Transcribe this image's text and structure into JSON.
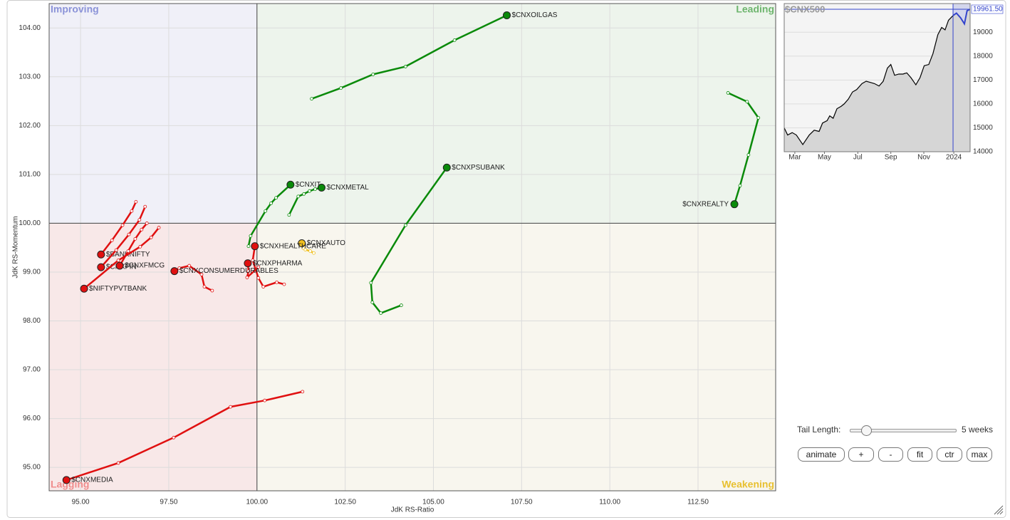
{
  "chart_data": [
    {
      "type": "rrg",
      "x_label": "JdK RS-Ratio",
      "y_label": "JdK RS-Momentum",
      "xlim": [
        94.11,
        114.7
      ],
      "ylim": [
        94.52,
        104.5
      ],
      "xticks": [
        {
          "value": 95,
          "label": "95.00"
        },
        {
          "value": 97.5,
          "label": "97.50"
        },
        {
          "value": 100,
          "label": "100.00"
        },
        {
          "value": 102.5,
          "label": "102.50"
        },
        {
          "value": 105,
          "label": "105.00"
        },
        {
          "value": 107.5,
          "label": "107.50"
        },
        {
          "value": 110,
          "label": "110.00"
        },
        {
          "value": 112.5,
          "label": "112.50"
        }
      ],
      "yticks": [
        {
          "value": 95,
          "label": "95.00"
        },
        {
          "value": 96,
          "label": "96.00"
        },
        {
          "value": 97,
          "label": "97.00"
        },
        {
          "value": 98,
          "label": "98.00"
        },
        {
          "value": 99,
          "label": "99.00"
        },
        {
          "value": 100,
          "label": "100.00"
        },
        {
          "value": 101,
          "label": "101.00"
        },
        {
          "value": 102,
          "label": "102.00"
        },
        {
          "value": 103,
          "label": "103.00"
        },
        {
          "value": 104,
          "label": "104.00"
        }
      ],
      "grid": true,
      "center": [
        100,
        100
      ],
      "quadrants": [
        {
          "name": "Improving",
          "color": "#8b93d8",
          "fill": "#f0f0f8"
        },
        {
          "name": "Leading",
          "color": "#6db56d",
          "fill": "#edf4ec"
        },
        {
          "name": "Lagging",
          "color": "#f08c8c",
          "fill": "#f8e8e8"
        },
        {
          "name": "Weakening",
          "color": "#e8c030",
          "fill": "#f8f6ee"
        }
      ],
      "series": [
        {
          "name": "$CNXOILGAS",
          "color": "#0a8a0a",
          "x": [
            101.55,
            102.38,
            103.29,
            104.21,
            105.6,
            107.08
          ],
          "y": [
            102.55,
            102.77,
            103.05,
            103.21,
            103.75,
            104.26
          ]
        },
        {
          "name": "$CNXREALTY",
          "color": "#0a8a0a",
          "x": [
            113.35,
            113.89,
            114.21,
            113.93,
            113.69,
            113.53
          ],
          "y": [
            102.67,
            102.49,
            102.16,
            101.4,
            100.77,
            100.39
          ]
        },
        {
          "name": "$CNXPSUBANK",
          "color": "#0a8a0a",
          "x": [
            104.09,
            103.51,
            103.27,
            103.23,
            104.21,
            105.38
          ],
          "y": [
            98.32,
            98.16,
            98.38,
            98.78,
            99.96,
            101.14
          ]
        },
        {
          "name": "$CNXIT",
          "color": "#0a8a0a",
          "x": [
            99.76,
            99.82,
            100.24,
            100.4,
            100.54,
            100.95
          ],
          "y": [
            99.53,
            99.74,
            100.25,
            100.41,
            100.52,
            100.79
          ]
        },
        {
          "name": "$CNXMETAL",
          "color": "#0a8a0a",
          "x": [
            100.91,
            101.17,
            101.33,
            101.49,
            101.65,
            101.83
          ],
          "y": [
            100.17,
            100.55,
            100.6,
            100.66,
            100.7,
            100.73
          ]
        },
        {
          "name": "$CNXAUTO",
          "color": "#f0c020",
          "x": [
            101.61,
            101.51,
            101.37,
            101.31,
            101.27
          ],
          "y": [
            99.39,
            99.43,
            99.46,
            99.49,
            99.59
          ]
        },
        {
          "name": "$CNXHEALTHCARE",
          "color": "#e01010",
          "x": [
            100.77,
            100.56,
            100.18,
            100.04,
            99.88,
            99.94
          ],
          "y": [
            98.75,
            98.79,
            98.7,
            98.88,
            99.24,
            99.53
          ]
        },
        {
          "name": "$CNXPHARMA",
          "color": "#e01010",
          "x": [
            100.04,
            99.72,
            99.76,
            99.74
          ],
          "y": [
            99.1,
            98.89,
            99.02,
            99.18
          ]
        },
        {
          "name": "$CNXCONSUMERDURABLES",
          "color": "#e01010",
          "x": [
            98.73,
            98.51,
            98.43,
            98.08,
            97.8,
            97.66
          ],
          "y": [
            98.62,
            98.7,
            98.95,
            99.13,
            99.08,
            99.02
          ]
        },
        {
          "name": "$CNXMEDIA",
          "color": "#e01010",
          "x": [
            101.29,
            100.22,
            99.25,
            97.64,
            96.07,
            94.6
          ],
          "y": [
            96.55,
            96.37,
            96.24,
            95.61,
            95.09,
            94.74
          ]
        },
        {
          "name": "$BANKNIFTY",
          "color": "#e01010",
          "x": [
            96.57,
            96.45,
            96.19,
            95.89,
            95.58
          ],
          "y": [
            100.44,
            100.25,
            99.96,
            99.65,
            99.36
          ]
        },
        {
          "name": "$CNXFIN",
          "color": "#e01010",
          "x": [
            96.83,
            96.67,
            96.37,
            96.01,
            95.58
          ],
          "y": [
            100.34,
            100.07,
            99.77,
            99.45,
            99.1
          ]
        },
        {
          "name": "$CNXFMCG",
          "color": "#e01010",
          "x": [
            96.88,
            96.73,
            96.55,
            96.35,
            96.11
          ],
          "y": [
            100.0,
            99.87,
            99.68,
            99.43,
            99.13
          ]
        },
        {
          "name": "$NIFTYPVTBANK",
          "color": "#e01010",
          "x": [
            97.22,
            97.0,
            96.69,
            96.07,
            95.1
          ],
          "y": [
            99.91,
            99.71,
            99.52,
            99.24,
            98.66
          ]
        }
      ]
    },
    {
      "type": "line",
      "title": "$CNX500",
      "x": [
        0,
        0.9,
        2.1,
        3.2,
        4.9,
        6.6,
        7.9,
        9.2,
        10.1,
        11.3,
        12.0,
        12.9,
        13.9,
        15.0,
        15.8,
        16.9,
        18.0,
        19.1,
        20.5,
        21.6,
        22.7,
        23.8,
        25.0,
        26.1,
        27.2,
        28.1,
        29.1,
        30.2,
        31.3,
        32.3,
        33.4,
        34.7,
        35.8,
        36.9,
        38.1,
        39.2,
        40.5,
        41.5,
        42.4,
        43.3,
        44.5,
        45.4,
        46.5,
        47.5,
        48.2,
        49.0
      ],
      "values": [
        15000,
        14700,
        14800,
        14700,
        14300,
        14700,
        14900,
        14850,
        15200,
        15300,
        15500,
        15400,
        15800,
        15900,
        16000,
        16200,
        16500,
        16600,
        16850,
        16950,
        16900,
        16850,
        16750,
        16950,
        17500,
        17650,
        17200,
        17250,
        17250,
        17300,
        17100,
        16800,
        17100,
        17600,
        17650,
        18100,
        18900,
        19200,
        19100,
        19500,
        19700,
        19800,
        19600,
        19350,
        19900,
        19961.5
      ],
      "xlim": [
        0,
        49
      ],
      "ylim": [
        14000,
        20200
      ],
      "xticks": [
        {
          "value": 2.8,
          "label": "Mar"
        },
        {
          "value": 10.6,
          "label": "May"
        },
        {
          "value": 19.4,
          "label": "Jul"
        },
        {
          "value": 28.1,
          "label": "Sep"
        },
        {
          "value": 36.8,
          "label": "Nov"
        },
        {
          "value": 44.7,
          "label": "2024"
        }
      ],
      "yticks": [
        14000,
        15000,
        16000,
        17000,
        18000,
        19000
      ],
      "color": "#000000",
      "highlight_color": "#3344cc",
      "highlight": [
        44.5,
        49
      ],
      "current": {
        "value": 19961.5,
        "label": "19961.50"
      }
    }
  ],
  "controls": {
    "tail_label": "Tail Length:",
    "tail_value": "5 weeks",
    "buttons": [
      "animate",
      "+",
      "-",
      "fit",
      "ctr",
      "max"
    ]
  }
}
